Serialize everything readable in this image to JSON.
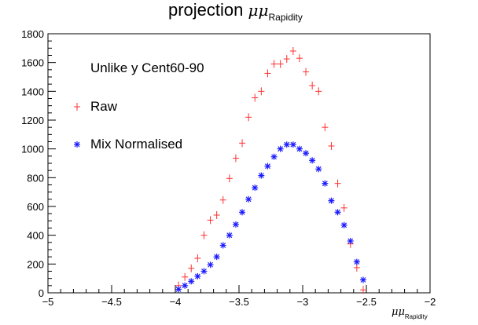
{
  "chart_data": {
    "type": "scatter",
    "title": {
      "main": "projection ",
      "symbol": "μμ",
      "subscript": "Rapidity"
    },
    "xlabel": {
      "symbol": "μμ",
      "subscript": "Rapidity"
    },
    "ylabel": "",
    "xlim": [
      -5,
      -2
    ],
    "ylim": [
      0,
      1800
    ],
    "xticks": [
      -5,
      -4.5,
      -4,
      -3.5,
      -3,
      -2.5,
      -2
    ],
    "xtick_labels": [
      "−5",
      "−4.5",
      "−4",
      "−3.5",
      "−3",
      "−2.5",
      "−2"
    ],
    "yticks": [
      0,
      200,
      400,
      600,
      800,
      1000,
      1200,
      1400,
      1600,
      1800
    ],
    "ytick_labels": [
      "0",
      "200",
      "400",
      "600",
      "800",
      "1000",
      "1200",
      "1400",
      "1600",
      "1800"
    ],
    "grid": false,
    "legend": {
      "header": "Unlike y Cent60-90",
      "placement": "top-left",
      "entries": [
        {
          "label": "Raw",
          "marker": "plus",
          "color": "#ff3030"
        },
        {
          "label": "Mix Normalised",
          "marker": "asterisk",
          "color": "#1a1aff"
        }
      ]
    },
    "bin_width": 0.05,
    "series": [
      {
        "name": "Raw",
        "marker": "plus",
        "color": "#ff3030",
        "x": [
          -4.025,
          -3.975,
          -3.925,
          -3.875,
          -3.825,
          -3.775,
          -3.725,
          -3.675,
          -3.625,
          -3.575,
          -3.525,
          -3.475,
          -3.425,
          -3.375,
          -3.325,
          -3.275,
          -3.225,
          -3.175,
          -3.125,
          -3.075,
          -3.025,
          -2.975,
          -2.925,
          -2.875,
          -2.825,
          -2.775,
          -2.725,
          -2.675,
          -2.625,
          -2.575,
          -2.525
        ],
        "y": [
          0,
          50,
          110,
          170,
          240,
          400,
          505,
          540,
          645,
          795,
          935,
          1040,
          1220,
          1355,
          1400,
          1525,
          1590,
          1590,
          1625,
          1680,
          1630,
          1535,
          1440,
          1400,
          1150,
          1020,
          760,
          590,
          340,
          175,
          20
        ]
      },
      {
        "name": "Mix Normalised",
        "marker": "asterisk",
        "color": "#1a1aff",
        "x": [
          -4.025,
          -3.975,
          -3.925,
          -3.875,
          -3.825,
          -3.775,
          -3.725,
          -3.675,
          -3.625,
          -3.575,
          -3.525,
          -3.475,
          -3.425,
          -3.375,
          -3.325,
          -3.275,
          -3.225,
          -3.175,
          -3.125,
          -3.075,
          -3.025,
          -2.975,
          -2.925,
          -2.875,
          -2.825,
          -2.775,
          -2.725,
          -2.675,
          -2.625,
          -2.575,
          -2.525
        ],
        "y": [
          0,
          25,
          50,
          80,
          115,
          150,
          195,
          250,
          330,
          400,
          475,
          560,
          650,
          730,
          815,
          880,
          945,
          1000,
          1030,
          1030,
          1000,
          970,
          920,
          860,
          760,
          640,
          560,
          470,
          360,
          215,
          90
        ]
      }
    ]
  }
}
